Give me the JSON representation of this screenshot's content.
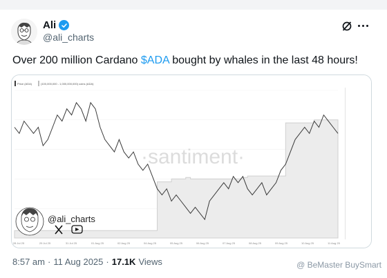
{
  "author": {
    "name": "Ali",
    "handle": "@ali_charts",
    "verified_color": "#1d9bf0"
  },
  "tweet": {
    "text_before": "Over 200 million Cardano ",
    "cashtag": "$ADA",
    "text_after": " bought by whales in the last 48 hours!",
    "cashtag_color": "#1d9bf0"
  },
  "meta": {
    "time": "8:57 am",
    "separator": "·",
    "date": "11 Aug 2025",
    "separator2": "·",
    "views_count": "17.1K",
    "views_label": "Views"
  },
  "watermark": "@ BeMaster BuySmart",
  "media": {
    "overlay_handle": "@ali_charts",
    "chart_watermark": "·santiment·",
    "social_icons": [
      "x-icon",
      "youtube-icon"
    ]
  },
  "chart_data": {
    "type": "line",
    "legend": [
      "Price (ADA)",
      "(100,000,000 - 1,000,000,000) coins (ADA)"
    ],
    "x_tick_labels": [
      "28 Jul 25",
      "29 Jul 25",
      "31 Jul 25",
      "01 Aug 25",
      "02 Aug 25",
      "04 Aug 25",
      "05 Aug 25",
      "06 Aug 25",
      "07 Aug 25",
      "08 Aug 25",
      "09 Aug 25",
      "10 Aug 25",
      "11 Aug 25"
    ],
    "series": [
      {
        "name": "Price (ADA)",
        "color": "#3a3a3a",
        "values": [
          0.8,
          0.79,
          0.81,
          0.8,
          0.79,
          0.8,
          0.77,
          0.78,
          0.8,
          0.82,
          0.81,
          0.83,
          0.82,
          0.84,
          0.83,
          0.81,
          0.84,
          0.83,
          0.8,
          0.78,
          0.77,
          0.76,
          0.78,
          0.76,
          0.75,
          0.76,
          0.74,
          0.73,
          0.74,
          0.72,
          0.7,
          0.69,
          0.7,
          0.68,
          0.69,
          0.68,
          0.67,
          0.66,
          0.67,
          0.66,
          0.65,
          0.68,
          0.69,
          0.7,
          0.71,
          0.7,
          0.72,
          0.71,
          0.72,
          0.7,
          0.69,
          0.7,
          0.71,
          0.69,
          0.7,
          0.71,
          0.73,
          0.74,
          0.76,
          0.78,
          0.79,
          0.8,
          0.79,
          0.81,
          0.8,
          0.82,
          0.81,
          0.8,
          0.79
        ]
      },
      {
        "name": "(100,000,000 - 1,000,000,000) coins (ADA)",
        "color": "#bdbdbd",
        "values": [
          0.05,
          0.05,
          0.05,
          0.05,
          0.05,
          0.05,
          0.05,
          0.05,
          0.05,
          0.05,
          0.05,
          0.05,
          0.05,
          0.05,
          0.05,
          0.05,
          0.05,
          0.05,
          0.05,
          0.05,
          0.05,
          0.05,
          0.05,
          0.05,
          0.05,
          0.05,
          0.05,
          0.05,
          0.05,
          0.05,
          0.38,
          0.38,
          0.38,
          0.4,
          0.4,
          0.4,
          0.41,
          0.4,
          0.4,
          0.4,
          0.4,
          0.4,
          0.4,
          0.4,
          0.4,
          0.4,
          0.4,
          0.4,
          0.41,
          0.42,
          0.42,
          0.42,
          0.42,
          0.42,
          0.42,
          0.42,
          0.42,
          0.78,
          0.78,
          0.78,
          0.78,
          0.78,
          0.78,
          0.8,
          0.8,
          0.8,
          0.8,
          0.8,
          0.8
        ]
      }
    ]
  }
}
